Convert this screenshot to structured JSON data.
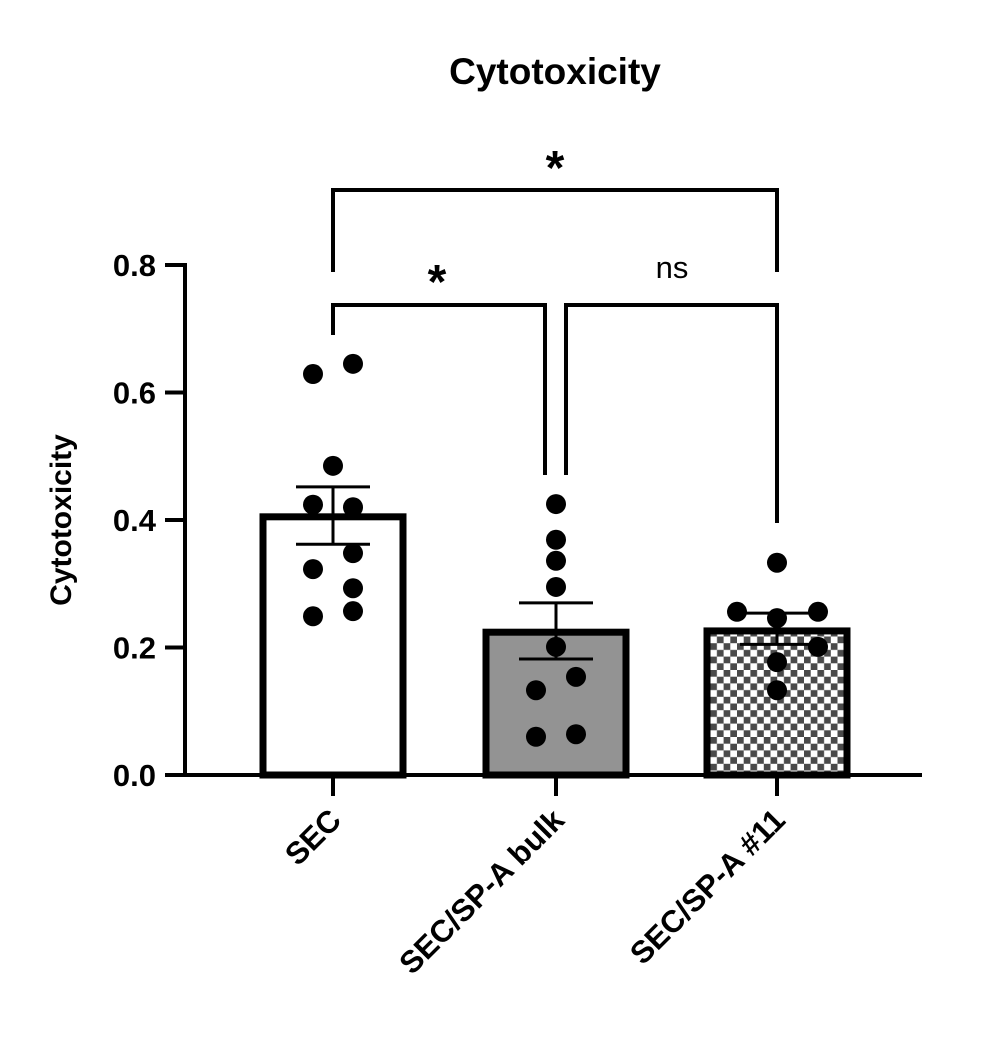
{
  "chart_data": {
    "type": "bar",
    "title": "Cytotoxicity",
    "xlabel": "",
    "ylabel": "Cytotoxicity",
    "ylim": [
      0,
      0.8
    ],
    "yticks": [
      "0.0",
      "0.2",
      "0.4",
      "0.6",
      "0.8"
    ],
    "grid": false,
    "legend": "none",
    "categories": [
      "SEC",
      "SEC/SP-A bulk",
      "SEC/SP-A #11"
    ],
    "values": [
      0.405,
      0.224,
      0.226
    ],
    "error_low": [
      0.362,
      0.182,
      0.205
    ],
    "error_high": [
      0.452,
      0.27,
      0.254
    ],
    "fills": [
      "#ffffff",
      "#939393",
      "checker"
    ],
    "checker_color": "#4a4a4a",
    "points": [
      [
        0.629,
        0.645,
        0.485,
        0.42,
        0.424,
        0.348,
        0.323,
        0.293,
        0.249,
        0.257
      ],
      [
        0.425,
        0.369,
        0.336,
        0.295,
        0.201,
        0.133,
        0.154,
        0.06,
        0.064
      ],
      [
        0.333,
        0.256,
        0.256,
        0.246,
        0.201,
        0.177,
        0.133
      ]
    ],
    "annotations": [
      {
        "from": 0,
        "to": 2,
        "label": "*"
      },
      {
        "from": 0,
        "to": 1,
        "label": "*"
      },
      {
        "from": 1,
        "to": 2,
        "label": "ns"
      }
    ]
  }
}
